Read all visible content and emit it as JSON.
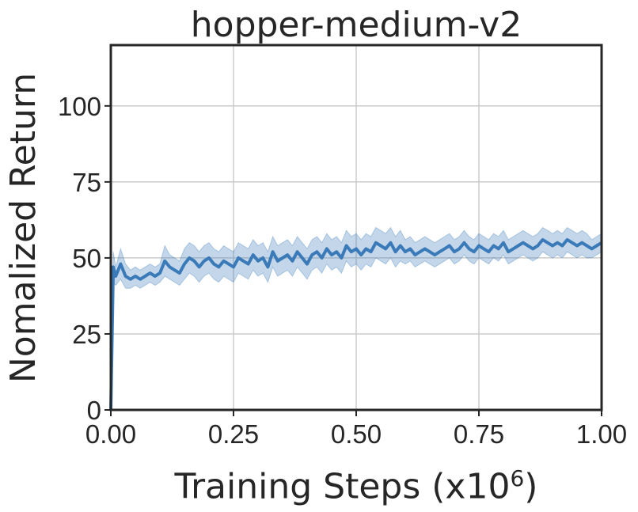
{
  "chart_data": {
    "type": "line",
    "title": "hopper-medium-v2",
    "xlabel_text": "Training Steps (x10",
    "xlabel_exp": "6",
    "xlabel_close": ")",
    "ylabel": "Nomalized Return",
    "xlim": [
      0,
      1.0
    ],
    "ylim": [
      0,
      120
    ],
    "xticks": [
      0,
      0.25,
      0.5,
      0.75,
      1.0
    ],
    "xtick_labels": [
      "0.00",
      "0.25",
      "0.50",
      "0.75",
      "1.00"
    ],
    "yticks": [
      0,
      25,
      50,
      75,
      100
    ],
    "ytick_labels": [
      "0",
      "25",
      "50",
      "75",
      "100"
    ],
    "grid": true,
    "series_color": "#3a7ab8",
    "band_color": "#3a7ab8",
    "series": [
      {
        "x": [
          0,
          0.005,
          0.01,
          0.02,
          0.03,
          0.04,
          0.05,
          0.06,
          0.07,
          0.08,
          0.09,
          0.1,
          0.11,
          0.12,
          0.13,
          0.14,
          0.15,
          0.16,
          0.17,
          0.18,
          0.19,
          0.2,
          0.21,
          0.22,
          0.23,
          0.24,
          0.25,
          0.26,
          0.27,
          0.28,
          0.29,
          0.3,
          0.31,
          0.32,
          0.33,
          0.34,
          0.35,
          0.36,
          0.37,
          0.38,
          0.39,
          0.4,
          0.41,
          0.42,
          0.43,
          0.44,
          0.45,
          0.46,
          0.47,
          0.48,
          0.49,
          0.5,
          0.51,
          0.52,
          0.53,
          0.54,
          0.55,
          0.56,
          0.57,
          0.58,
          0.59,
          0.6,
          0.61,
          0.62,
          0.63,
          0.64,
          0.65,
          0.66,
          0.67,
          0.68,
          0.69,
          0.7,
          0.71,
          0.72,
          0.73,
          0.74,
          0.75,
          0.76,
          0.77,
          0.78,
          0.79,
          0.8,
          0.81,
          0.82,
          0.83,
          0.84,
          0.85,
          0.86,
          0.87,
          0.88,
          0.89,
          0.9,
          0.91,
          0.92,
          0.93,
          0.94,
          0.95,
          0.96,
          0.97,
          0.98,
          0.99,
          1.0
        ],
        "mean": [
          0,
          47,
          44,
          48,
          44,
          43,
          44,
          43,
          44,
          45,
          44,
          45,
          49,
          47,
          46,
          45,
          48,
          50,
          49,
          47,
          49,
          50,
          48,
          47,
          49,
          48,
          47,
          50,
          49,
          48,
          51,
          49,
          50,
          47,
          52,
          49,
          50,
          51,
          49,
          52,
          50,
          48,
          51,
          52,
          50,
          53,
          51,
          52,
          50,
          54,
          52,
          53,
          51,
          53,
          52,
          55,
          54,
          53,
          55,
          52,
          54,
          52,
          53,
          51,
          52,
          53,
          52,
          51,
          52,
          53,
          54,
          52,
          53,
          55,
          53,
          52,
          54,
          53,
          52,
          54,
          53,
          55,
          52,
          53,
          54,
          55,
          54,
          53,
          54,
          56,
          55,
          54,
          55,
          54,
          56,
          55,
          54,
          55,
          54,
          53,
          54,
          55
        ],
        "lower": [
          0,
          42,
          41,
          43,
          40,
          40,
          41,
          40,
          41,
          42,
          41,
          42,
          44,
          43,
          42,
          41,
          43,
          45,
          44,
          42,
          44,
          45,
          43,
          42,
          44,
          43,
          42,
          45,
          44,
          43,
          46,
          44,
          45,
          42,
          47,
          44,
          45,
          46,
          44,
          47,
          45,
          43,
          46,
          47,
          45,
          48,
          46,
          47,
          45,
          49,
          47,
          48,
          46,
          48,
          47,
          50,
          49,
          48,
          50,
          47,
          49,
          48,
          49,
          47,
          48,
          49,
          48,
          47,
          48,
          49,
          50,
          48,
          49,
          51,
          49,
          48,
          50,
          49,
          48,
          50,
          49,
          51,
          48,
          49,
          50,
          51,
          50,
          49,
          50,
          52,
          51,
          50,
          51,
          50,
          52,
          51,
          50,
          51,
          50,
          50,
          51,
          52
        ],
        "upper": [
          0,
          52,
          47,
          53,
          48,
          46,
          47,
          46,
          47,
          48,
          47,
          48,
          54,
          51,
          50,
          49,
          53,
          55,
          54,
          52,
          54,
          55,
          53,
          52,
          54,
          53,
          52,
          55,
          54,
          53,
          56,
          54,
          55,
          52,
          57,
          54,
          55,
          56,
          54,
          57,
          55,
          53,
          56,
          57,
          55,
          58,
          56,
          57,
          55,
          59,
          57,
          58,
          56,
          58,
          57,
          60,
          59,
          58,
          60,
          57,
          59,
          56,
          57,
          55,
          56,
          57,
          56,
          55,
          56,
          57,
          58,
          56,
          57,
          59,
          57,
          56,
          58,
          57,
          56,
          58,
          57,
          59,
          56,
          57,
          58,
          59,
          58,
          57,
          58,
          60,
          59,
          58,
          59,
          58,
          60,
          59,
          58,
          59,
          58,
          56,
          57,
          58
        ]
      }
    ]
  }
}
